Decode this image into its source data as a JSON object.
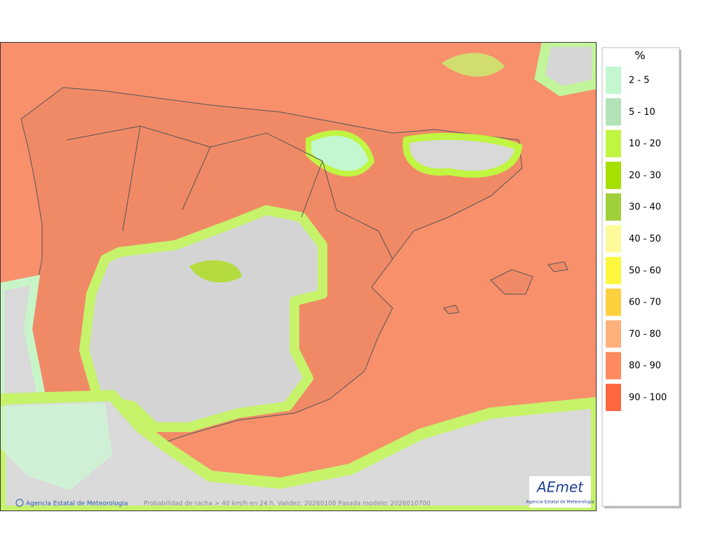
{
  "map": {
    "caption": "Probabilidad de racha > 40 km/h en 24 h. Validez: 20260108 Pasada modelo: 2026010700",
    "credit": "Agencia Estatal de Meteorología",
    "logo": {
      "name": "AEmet",
      "subtitle": "Agencia Estatal de Meteorología"
    }
  },
  "legend": {
    "title": "%",
    "items": [
      {
        "label": "2 - 5",
        "color": "#c2f7cf"
      },
      {
        "label": "5 - 10",
        "color": "#b2e3b6"
      },
      {
        "label": "10 - 20",
        "color": "#c0f542"
      },
      {
        "label": "20 - 30",
        "color": "#a6e000"
      },
      {
        "label": "30 - 40",
        "color": "#9fcf3a"
      },
      {
        "label": "40 - 50",
        "color": "#fdfa9a"
      },
      {
        "label": "50 - 60",
        "color": "#fdf83f"
      },
      {
        "label": "60 - 70",
        "color": "#fdd040"
      },
      {
        "label": "70 - 80",
        "color": "#fdb07a"
      },
      {
        "label": "80 - 90",
        "color": "#fc8a5e"
      },
      {
        "label": "90 - 100",
        "color": "#fd6840"
      }
    ]
  }
}
